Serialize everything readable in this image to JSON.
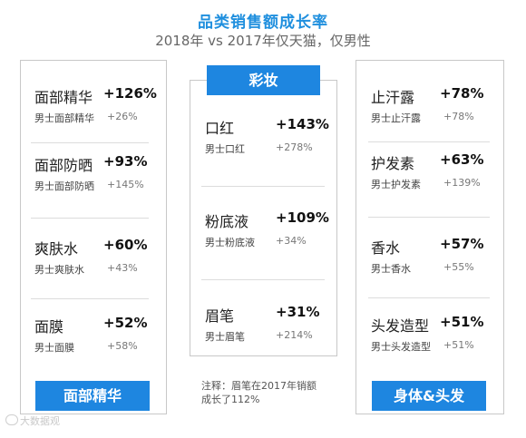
{
  "title": "品类销售额成长率",
  "subtitle": "2018年 vs 2017年仅天猫，仅男性",
  "note": "注释：眉笔在2017年销额成长了112%",
  "watermark": "大数据观",
  "chart_data": {
    "type": "table",
    "title": "品类销售额成长率",
    "subtitle": "2018年 vs 2017年仅天猫，仅男性",
    "groups": [
      {
        "name": "面部精华",
        "items": [
          {
            "name": "面部精华",
            "value": "+126%",
            "sub_name": "男士面部精华",
            "sub_value": "+26%"
          },
          {
            "name": "面部防晒",
            "value": "+93%",
            "sub_name": "男士面部防晒",
            "sub_value": "+145%"
          },
          {
            "name": "爽肤水",
            "value": "+60%",
            "sub_name": "男士爽肤水",
            "sub_value": "+43%"
          },
          {
            "name": "面膜",
            "value": "+52%",
            "sub_name": "男士面膜",
            "sub_value": "+58%"
          }
        ]
      },
      {
        "name": "彩妆",
        "items": [
          {
            "name": "口红",
            "value": "+143%",
            "sub_name": "男士口红",
            "sub_value": "+278%"
          },
          {
            "name": "粉底液",
            "value": "+109%",
            "sub_name": "男士粉底液",
            "sub_value": "+34%"
          },
          {
            "name": "眉笔",
            "value": "+31%",
            "sub_name": "男士眉笔",
            "sub_value": "+214%"
          }
        ]
      },
      {
        "name": "身体&头发",
        "items": [
          {
            "name": "止汗露",
            "value": "+78%",
            "sub_name": "男士止汗露",
            "sub_value": "+78%"
          },
          {
            "name": "护发素",
            "value": "+63%",
            "sub_name": "男士护发素",
            "sub_value": "+139%"
          },
          {
            "name": "香水",
            "value": "+57%",
            "sub_name": "男士香水",
            "sub_value": "+55%"
          },
          {
            "name": "头发造型",
            "value": "+51%",
            "sub_name": "男士头发造型",
            "sub_value": "+51%"
          }
        ]
      }
    ]
  }
}
